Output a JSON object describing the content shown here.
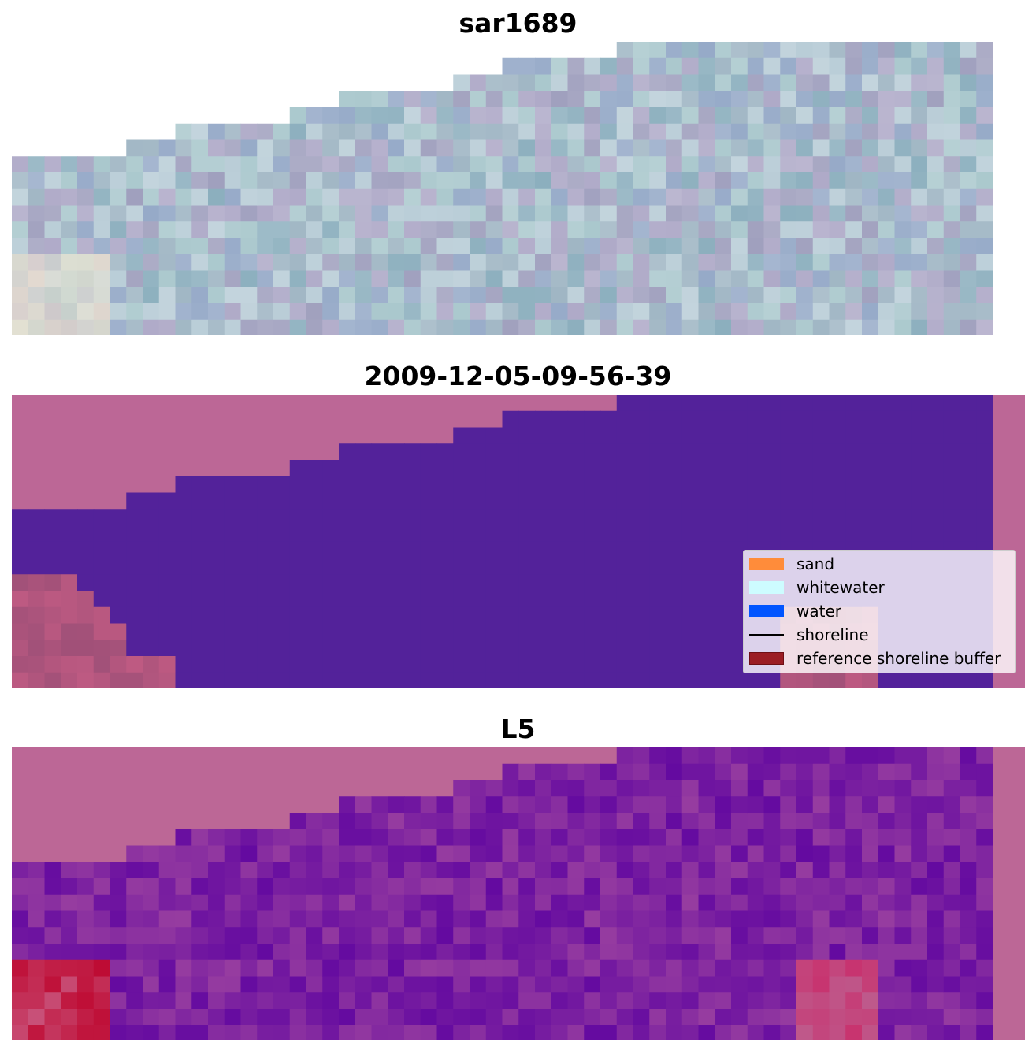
{
  "panels": {
    "rgb": {
      "title": "sar1689"
    },
    "classified": {
      "title": "2009-12-05-09-56-39"
    },
    "index": {
      "title": "L5"
    }
  },
  "legend": {
    "items": [
      {
        "label": "sand",
        "color": "#ff8c3a",
        "kind": "patch"
      },
      {
        "label": "whitewater",
        "color": "#cdfcff",
        "kind": "patch"
      },
      {
        "label": "water",
        "color": "#0055ff",
        "kind": "patch"
      },
      {
        "label": "shoreline",
        "color": "#000000",
        "kind": "line"
      },
      {
        "label": "reference shoreline buffer",
        "color": "#9b1d24",
        "kind": "patch"
      }
    ]
  },
  "colors": {
    "background_magenta": "#bc6796",
    "water_purple": "#53229a",
    "rgb_tint": "#9fb2c4"
  }
}
